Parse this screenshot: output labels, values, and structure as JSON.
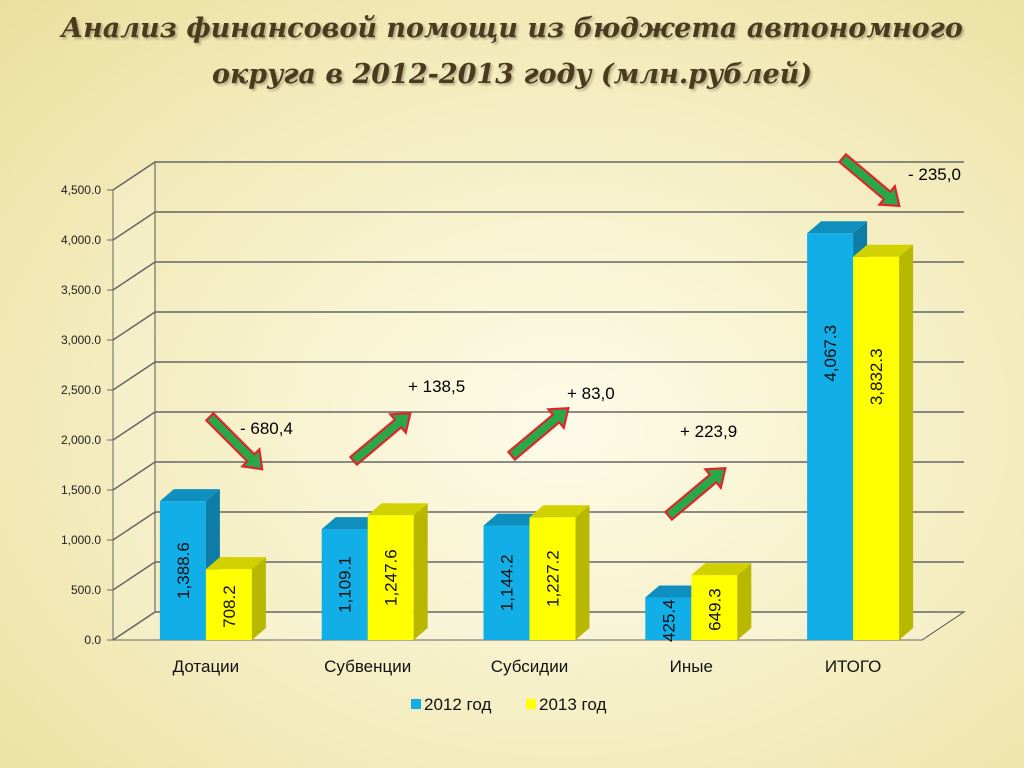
{
  "title_line1": "Анализ финансовой помощи из бюджета автономного",
  "title_line2": "округа в 2012-2013 году (млн.рублей)",
  "colors": {
    "series_2012": "#12aee8",
    "series_2013": "#ffff00",
    "arrow_fill": "#29a84a",
    "arrow_stroke": "#e0252a"
  },
  "chart_data": {
    "type": "bar",
    "categories": [
      "Дотации",
      "Субвенции",
      "Субсидии",
      "Иные",
      "ИТОГО"
    ],
    "series": [
      {
        "name": "2012 год",
        "values": [
          1388.6,
          1109.1,
          1144.2,
          425.4,
          4067.3
        ],
        "labels": [
          "1,388.6",
          "1,109.1",
          "1,144.2",
          "425.4",
          "4,067.3"
        ]
      },
      {
        "name": "2013 год",
        "values": [
          708.2,
          1247.6,
          1227.2,
          649.3,
          3832.3
        ],
        "labels": [
          "708.2",
          "1,247.6",
          "1,227.2",
          "649.3",
          "3,832.3"
        ]
      }
    ],
    "ylim": [
      0,
      4500
    ],
    "yticks": [
      "0.0",
      "500.0",
      "1,000.0",
      "1,500.0",
      "2,000.0",
      "2,500.0",
      "3,000.0",
      "3,500.0",
      "4,000.0",
      "4,500.0"
    ],
    "grid": true,
    "legend_position": "bottom",
    "annotations": [
      {
        "category": "Дотации",
        "text": "-  680,4",
        "direction": "down"
      },
      {
        "category": "Субвенции",
        "text": "+ 138,5",
        "direction": "up"
      },
      {
        "category": "Субсидии",
        "text": "+ 83,0",
        "direction": "up"
      },
      {
        "category": "Иные",
        "text": "+ 223,9",
        "direction": "up"
      },
      {
        "category": "ИТОГО",
        "text": "- 235,0",
        "direction": "down"
      }
    ]
  }
}
